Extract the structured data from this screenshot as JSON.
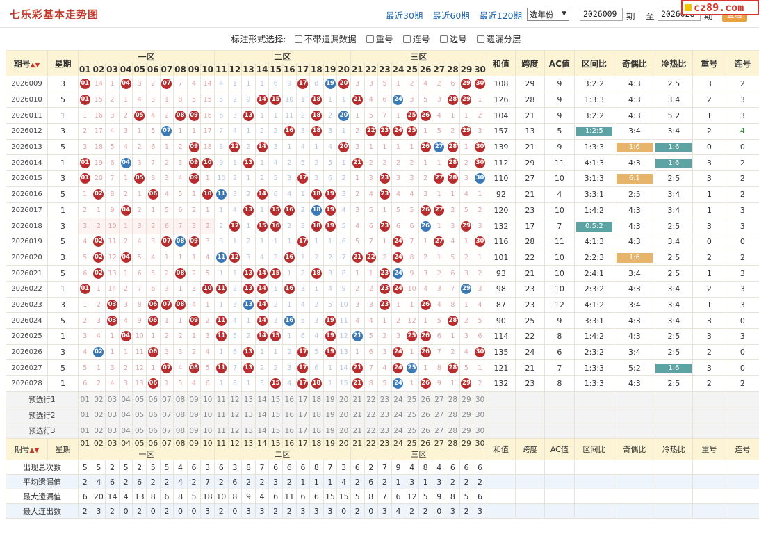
{
  "header": {
    "title": "七乐彩基本走势图",
    "nav": [
      "最近30期",
      "最近60期",
      "最近120期"
    ],
    "year_select": "选年份",
    "period_from": "2026009",
    "period_label": "期",
    "to_label": "至",
    "period_to": "2026028",
    "period_label2": "期",
    "view_button": "查看",
    "site_logo": "cz89.com"
  },
  "options": {
    "label": "标注形式选择:",
    "items": [
      "不带遗漏数据",
      "重号",
      "连号",
      "边号",
      "遗漏分层"
    ]
  },
  "table": {
    "header_period": "期号",
    "header_week": "星期",
    "zones": [
      "一区",
      "二区",
      "三区"
    ],
    "stat_headers": [
      "和值",
      "跨度",
      "AC值",
      "区间比",
      "奇偶比",
      "冷热比",
      "重号",
      "连号"
    ],
    "numbers": [
      "01",
      "02",
      "03",
      "04",
      "05",
      "06",
      "07",
      "08",
      "09",
      "10",
      "11",
      "12",
      "13",
      "14",
      "15",
      "16",
      "17",
      "18",
      "19",
      "20",
      "21",
      "22",
      "23",
      "24",
      "25",
      "26",
      "27",
      "28",
      "29",
      "30"
    ],
    "rows": [
      {
        "period": "2026009",
        "week": "3",
        "cells": [
          "r01",
          "14",
          "1",
          "r04",
          "3",
          "2",
          "r07",
          "7",
          "4",
          "14",
          "4",
          "1",
          "1",
          "1",
          "6",
          "9",
          "r17",
          "8",
          "b19",
          "r20",
          "3",
          "3",
          "5",
          "1",
          "2",
          "4",
          "2",
          "6",
          "r29",
          "r30"
        ],
        "stats": [
          "108",
          "29",
          "9",
          "3:2:2",
          "4:3",
          "2:5",
          "3",
          "2"
        ]
      },
      {
        "period": "2026010",
        "week": "5",
        "cells": [
          "r01",
          "15",
          "2",
          "1",
          "4",
          "3",
          "1",
          "8",
          "5",
          "15",
          "5",
          "2",
          "9",
          "r14",
          "r15",
          "10",
          "1",
          "r18",
          "1",
          "1",
          "r21",
          "4",
          "6",
          "b24",
          "3",
          "5",
          "3",
          "r28",
          "r29",
          "1"
        ],
        "stats": [
          "126",
          "28",
          "9",
          "1:3:3",
          "4:3",
          "3:4",
          "2",
          "3"
        ]
      },
      {
        "period": "2026011",
        "week": "1",
        "cells": [
          "1",
          "16",
          "3",
          "2",
          "r05",
          "4",
          "2",
          "r08",
          "r09",
          "16",
          "6",
          "3",
          "r13",
          "1",
          "1",
          "11",
          "2",
          "r18",
          "2",
          "b20",
          "1",
          "5",
          "7",
          "1",
          "r25",
          "r26",
          "4",
          "1",
          "1",
          "2"
        ],
        "stats": [
          "104",
          "21",
          "9",
          "3:2:2",
          "4:3",
          "5:2",
          "1",
          "3"
        ]
      },
      {
        "period": "2026012",
        "week": "3",
        "cells": [
          "2",
          "17",
          "4",
          "3",
          "1",
          "5",
          "b07",
          "1",
          "1",
          "17",
          "7",
          "4",
          "1",
          "2",
          "2",
          "r16",
          "3",
          "r18",
          "3",
          "1",
          "2",
          "r22",
          "r23",
          "r24",
          "r25",
          "1",
          "5",
          "2",
          "r29",
          "3"
        ],
        "stats": [
          "157",
          "13",
          "5",
          "1:2:5",
          "3:4",
          "3:4",
          "2",
          "4"
        ]
      },
      {
        "period": "2026013",
        "week": "5",
        "cells": [
          "3",
          "18",
          "5",
          "4",
          "2",
          "6",
          "1",
          "2",
          "r09",
          "18",
          "8",
          "r12",
          "2",
          "r14",
          "3",
          "1",
          "4",
          "1",
          "4",
          "r20",
          "3",
          "1",
          "1",
          "1",
          "1",
          "r26",
          "b27",
          "r28",
          "1",
          "r30"
        ],
        "stats": [
          "139",
          "21",
          "9",
          "1:3:3",
          "1:6",
          "1:6",
          "0",
          "0"
        ]
      },
      {
        "period": "2026014",
        "week": "1",
        "cells": [
          "r01",
          "19",
          "6",
          "b04",
          "3",
          "7",
          "2",
          "3",
          "r09",
          "r10",
          "9",
          "1",
          "r13",
          "1",
          "4",
          "2",
          "5",
          "2",
          "5",
          "1",
          "r21",
          "2",
          "2",
          "2",
          "2",
          "1",
          "1",
          "r28",
          "2",
          "r30"
        ],
        "stats": [
          "112",
          "29",
          "11",
          "4:1:3",
          "4:3",
          "1:6",
          "3",
          "2"
        ]
      },
      {
        "period": "2026015",
        "week": "3",
        "cells": [
          "r01",
          "20",
          "7",
          "1",
          "r05",
          "8",
          "3",
          "4",
          "r09",
          "1",
          "10",
          "2",
          "1",
          "2",
          "5",
          "3",
          "r17",
          "3",
          "6",
          "2",
          "1",
          "3",
          "r23",
          "3",
          "3",
          "2",
          "r27",
          "r28",
          "3",
          "b30"
        ],
        "stats": [
          "110",
          "27",
          "10",
          "3:1:3",
          "6:1",
          "2:5",
          "3",
          "2"
        ]
      },
      {
        "period": "2026016",
        "week": "5",
        "cells": [
          "1",
          "r02",
          "8",
          "2",
          "1",
          "r06",
          "4",
          "5",
          "1",
          "r10",
          "b11",
          "3",
          "2",
          "r14",
          "6",
          "4",
          "1",
          "r18",
          "r19",
          "3",
          "2",
          "4",
          "r23",
          "4",
          "4",
          "3",
          "1",
          "1",
          "4",
          "1"
        ],
        "stats": [
          "92",
          "21",
          "4",
          "3:3:1",
          "2:5",
          "3:4",
          "1",
          "2"
        ]
      },
      {
        "period": "2026017",
        "week": "1",
        "cells": [
          "2",
          "1",
          "9",
          "r04",
          "2",
          "1",
          "5",
          "6",
          "2",
          "1",
          "1",
          "4",
          "r13",
          "1",
          "r15",
          "r16",
          "2",
          "b18",
          "r19",
          "4",
          "3",
          "5",
          "1",
          "5",
          "5",
          "r26",
          "r27",
          "2",
          "5",
          "2"
        ],
        "stats": [
          "120",
          "23",
          "10",
          "1:4:2",
          "4:3",
          "3:4",
          "1",
          "3"
        ]
      },
      {
        "period": "2026018",
        "week": "3",
        "cells": [
          "3",
          "2",
          "10",
          "1",
          "3",
          "2",
          "6",
          "7",
          "3",
          "2",
          "2",
          "r12",
          "1",
          "r15",
          "r16",
          "2",
          "3",
          "r18",
          "r19",
          "5",
          "4",
          "6",
          "r23",
          "6",
          "6",
          "b26",
          "1",
          "3",
          "r29",
          "3"
        ],
        "stats": [
          "132",
          "17",
          "7",
          "0:5:2",
          "4:3",
          "2:5",
          "3",
          "3"
        ]
      },
      {
        "period": "2026019",
        "week": "5",
        "cells": [
          "4",
          "r02",
          "11",
          "2",
          "4",
          "3",
          "r07",
          "b08",
          "r09",
          "3",
          "3",
          "1",
          "2",
          "1",
          "1",
          "1",
          "r17",
          "1",
          "1",
          "6",
          "5",
          "7",
          "1",
          "r24",
          "7",
          "1",
          "r27",
          "4",
          "1",
          "r30"
        ],
        "stats": [
          "116",
          "28",
          "11",
          "4:1:3",
          "4:3",
          "3:4",
          "0",
          "0"
        ]
      },
      {
        "period": "2026020",
        "week": "3",
        "cells": [
          "5",
          "r02",
          "12",
          "r04",
          "5",
          "4",
          "1",
          "1",
          "1",
          "4",
          "b11",
          "r12",
          "3",
          "4",
          "2",
          "r16",
          "1",
          "2",
          "2",
          "7",
          "r21",
          "r22",
          "2",
          "r24",
          "8",
          "2",
          "1",
          "5",
          "2",
          "1"
        ],
        "stats": [
          "101",
          "22",
          "10",
          "2:2:3",
          "1:6",
          "2:5",
          "2",
          "2"
        ]
      },
      {
        "period": "2026021",
        "week": "5",
        "cells": [
          "6",
          "r02",
          "13",
          "1",
          "6",
          "5",
          "2",
          "r08",
          "2",
          "5",
          "1",
          "1",
          "r13",
          "r14",
          "r15",
          "1",
          "2",
          "r18",
          "3",
          "8",
          "1",
          "1",
          "r23",
          "b24",
          "9",
          "3",
          "2",
          "6",
          "3",
          "2"
        ],
        "stats": [
          "93",
          "21",
          "10",
          "2:4:1",
          "3:4",
          "2:5",
          "1",
          "3"
        ]
      },
      {
        "period": "2026022",
        "week": "1",
        "cells": [
          "r01",
          "1",
          "14",
          "2",
          "7",
          "6",
          "3",
          "1",
          "3",
          "r10",
          "r11",
          "2",
          "r13",
          "r14",
          "1",
          "r16",
          "3",
          "1",
          "4",
          "9",
          "2",
          "2",
          "r23",
          "r24",
          "10",
          "4",
          "3",
          "7",
          "b29",
          "3"
        ],
        "stats": [
          "98",
          "23",
          "10",
          "2:3:2",
          "4:3",
          "3:4",
          "2",
          "3"
        ]
      },
      {
        "period": "2026023",
        "week": "3",
        "cells": [
          "1",
          "2",
          "r03",
          "3",
          "8",
          "r06",
          "r07",
          "r08",
          "4",
          "1",
          "1",
          "3",
          "b13",
          "r14",
          "2",
          "1",
          "4",
          "2",
          "5",
          "10",
          "3",
          "3",
          "r23",
          "1",
          "1",
          "r26",
          "4",
          "8",
          "1",
          "4"
        ],
        "stats": [
          "87",
          "23",
          "12",
          "4:1:2",
          "3:4",
          "3:4",
          "1",
          "3"
        ]
      },
      {
        "period": "2026024",
        "week": "5",
        "cells": [
          "2",
          "3",
          "r03",
          "4",
          "9",
          "r06",
          "1",
          "1",
          "r09",
          "2",
          "r11",
          "4",
          "1",
          "r14",
          "3",
          "b16",
          "5",
          "3",
          "r19",
          "11",
          "4",
          "4",
          "1",
          "2",
          "12",
          "1",
          "5",
          "r28",
          "2",
          "5"
        ],
        "stats": [
          "90",
          "25",
          "9",
          "3:3:1",
          "4:3",
          "3:4",
          "3",
          "0"
        ]
      },
      {
        "period": "2026025",
        "week": "1",
        "cells": [
          "3",
          "4",
          "1",
          "r04",
          "10",
          "1",
          "2",
          "2",
          "1",
          "3",
          "r11",
          "5",
          "2",
          "r14",
          "r15",
          "1",
          "6",
          "4",
          "r19",
          "12",
          "b21",
          "5",
          "2",
          "3",
          "r25",
          "r26",
          "6",
          "1",
          "3",
          "6"
        ],
        "stats": [
          "114",
          "22",
          "8",
          "1:4:2",
          "4:3",
          "2:5",
          "3",
          "3"
        ]
      },
      {
        "period": "2026026",
        "week": "3",
        "cells": [
          "4",
          "b02",
          "1",
          "1",
          "11",
          "r06",
          "3",
          "3",
          "2",
          "4",
          "1",
          "6",
          "r13",
          "1",
          "1",
          "2",
          "r17",
          "5",
          "r19",
          "13",
          "1",
          "6",
          "3",
          "r24",
          "1",
          "r26",
          "7",
          "2",
          "4",
          "r30"
        ],
        "stats": [
          "135",
          "24",
          "6",
          "2:3:2",
          "3:4",
          "2:5",
          "2",
          "0"
        ]
      },
      {
        "period": "2026027",
        "week": "5",
        "cells": [
          "5",
          "1",
          "3",
          "2",
          "12",
          "1",
          "r07",
          "4",
          "r08",
          "5",
          "r11",
          "7",
          "r13",
          "2",
          "2",
          "3",
          "r17",
          "6",
          "1",
          "14",
          "r21",
          "7",
          "4",
          "r24",
          "b25",
          "1",
          "8",
          "r28",
          "5",
          "1"
        ],
        "stats": [
          "121",
          "21",
          "7",
          "1:3:3",
          "5:2",
          "1:6",
          "3",
          "0"
        ]
      },
      {
        "period": "2026028",
        "week": "1",
        "cells": [
          "6",
          "2",
          "4",
          "3",
          "13",
          "r06",
          "1",
          "5",
          "4",
          "6",
          "1",
          "8",
          "1",
          "3",
          "r15",
          "4",
          "r17",
          "r18",
          "1",
          "15",
          "r21",
          "8",
          "5",
          "b24",
          "1",
          "r26",
          "9",
          "1",
          "r29",
          "2"
        ],
        "stats": [
          "132",
          "23",
          "8",
          "1:3:3",
          "4:3",
          "2:5",
          "2",
          "2"
        ]
      }
    ],
    "preselect": [
      "预选行1",
      "预选行2",
      "预选行3"
    ],
    "footer_rows": [
      {
        "label": "出现总次数",
        "values": [
          "5",
          "5",
          "2",
          "5",
          "2",
          "5",
          "5",
          "4",
          "6",
          "3",
          "6",
          "3",
          "8",
          "7",
          "6",
          "6",
          "6",
          "8",
          "7",
          "3",
          "6",
          "2",
          "7",
          "9",
          "4",
          "8",
          "4",
          "6",
          "6",
          "6"
        ]
      },
      {
        "label": "平均遗漏值",
        "values": [
          "2",
          "4",
          "6",
          "2",
          "6",
          "2",
          "2",
          "4",
          "2",
          "7",
          "2",
          "6",
          "2",
          "2",
          "3",
          "2",
          "1",
          "1",
          "1",
          "4",
          "2",
          "6",
          "2",
          "1",
          "3",
          "1",
          "3",
          "2",
          "2",
          "2"
        ]
      },
      {
        "label": "最大遗漏值",
        "values": [
          "6",
          "20",
          "14",
          "4",
          "13",
          "8",
          "6",
          "8",
          "5",
          "18",
          "10",
          "8",
          "9",
          "4",
          "6",
          "11",
          "6",
          "6",
          "15",
          "15",
          "5",
          "8",
          "7",
          "6",
          "12",
          "5",
          "9",
          "8",
          "5",
          "6"
        ]
      },
      {
        "label": "最大连出数",
        "values": [
          "2",
          "3",
          "2",
          "0",
          "2",
          "0",
          "2",
          "0",
          "0",
          "3",
          "2",
          "0",
          "3",
          "3",
          "2",
          "2",
          "3",
          "3",
          "3",
          "0",
          "2",
          "0",
          "3",
          "4",
          "2",
          "2",
          "0",
          "3",
          "2",
          "3"
        ]
      }
    ]
  },
  "colors": {
    "red_ball": "#b72d2d",
    "blue_ball": "#3a78b6",
    "header_bg": "#fcf4d4",
    "teal_badge": "#5ea3a3",
    "orange_badge": "#e6b46a"
  }
}
